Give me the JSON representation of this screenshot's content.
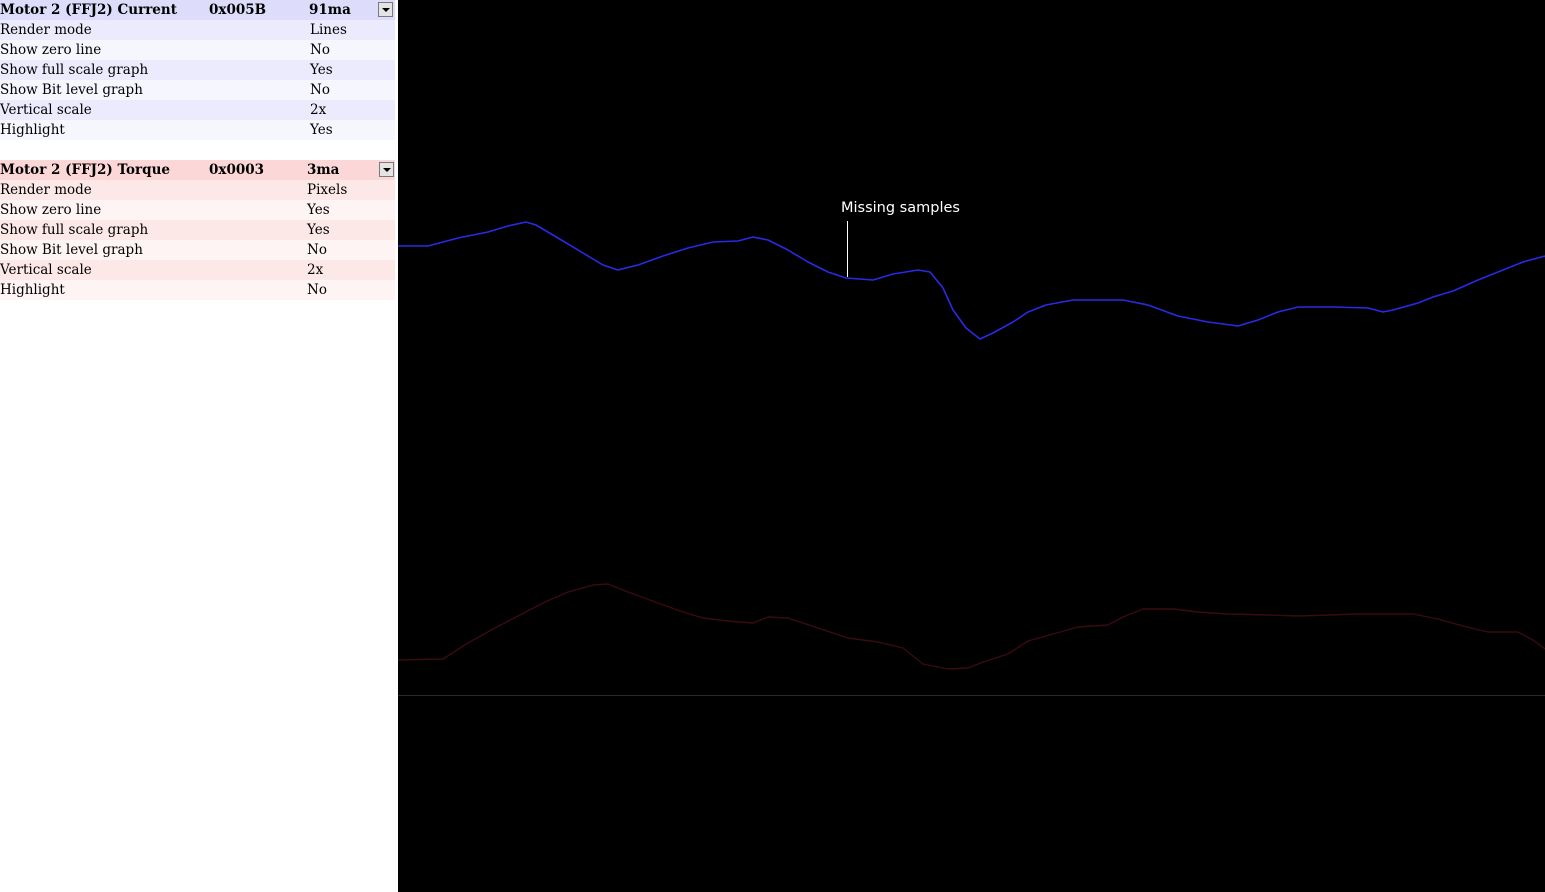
{
  "channels": [
    {
      "name": "Motor 2 (FFJ2) Current",
      "address": "0x005B",
      "reading": "91ma",
      "color": "#2a2ae6",
      "header_bg": "#dedcfb",
      "dropdown_icon": "chevron-down-icon",
      "properties": [
        {
          "label": "Render mode",
          "value": "Lines"
        },
        {
          "label": "Show zero line",
          "value": "No"
        },
        {
          "label": "Show full scale graph",
          "value": "Yes"
        },
        {
          "label": "Show Bit level graph",
          "value": "No"
        },
        {
          "label": "Vertical scale",
          "value": "2x"
        },
        {
          "label": "Highlight",
          "value": "Yes"
        }
      ]
    },
    {
      "name": "Motor 2 (FFJ2) Torque",
      "address": "0x0003",
      "reading": "3ma",
      "color": "#3a0b10",
      "header_bg": "#fcd7d7",
      "dropdown_icon": "chevron-down-icon",
      "properties": [
        {
          "label": "Render mode",
          "value": "Pixels"
        },
        {
          "label": "Show zero line",
          "value": "Yes"
        },
        {
          "label": "Show full scale graph",
          "value": "Yes"
        },
        {
          "label": "Show Bit level graph",
          "value": "No"
        },
        {
          "label": "Vertical scale",
          "value": "2x"
        },
        {
          "label": "Highlight",
          "value": "No"
        }
      ]
    }
  ],
  "graph": {
    "background": "#000000",
    "annotation": "Missing samples",
    "zero_line_color": "#2a2a2a"
  }
}
